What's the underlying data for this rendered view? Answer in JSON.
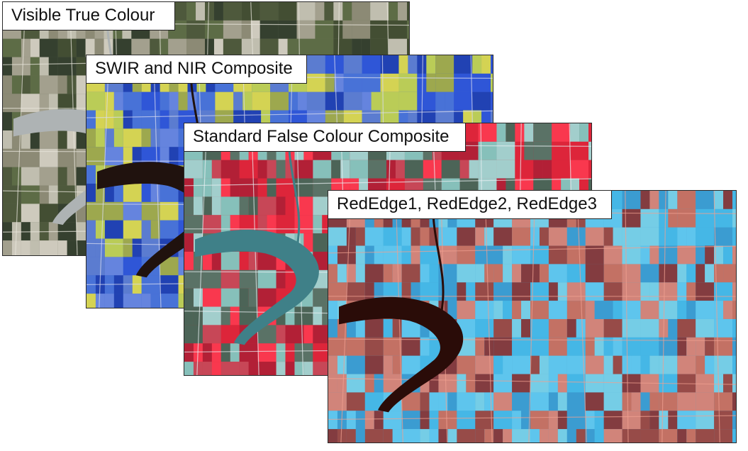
{
  "panels": [
    {
      "id": "visible",
      "label": "Visible True Colour",
      "palette": {
        "base": "#6f7361",
        "fields": [
          "#3e4a2f",
          "#a9a593",
          "#2f3b2a",
          "#8f8d78",
          "#c9c6b8",
          "#5b6b44",
          "#d8d4c8",
          "#4a5638"
        ],
        "water": "#aeb3b4",
        "road": "#e8e6dc"
      }
    },
    {
      "id": "swir-nir",
      "label": "SWIR and NIR Composite",
      "palette": {
        "base": "#3a5fc8",
        "fields": [
          "#2f55d8",
          "#e6e046",
          "#4a74d8",
          "#a8b040",
          "#1f3fb0",
          "#c9d84a",
          "#6a88e0",
          "#5f7fd0"
        ],
        "water": "#20120e",
        "road": "#d8dcf0"
      }
    },
    {
      "id": "false-colour",
      "label": "Standard False Colour Composite",
      "palette": {
        "base": "#c43040",
        "fields": [
          "#e0253a",
          "#7fd0c8",
          "#b01f35",
          "#4f7a6a",
          "#ff3a50",
          "#9fe0dc",
          "#c84a5a",
          "#3f6a5a"
        ],
        "water": "#3f8088",
        "road": "#e8f0f2"
      }
    },
    {
      "id": "red-edge",
      "label": "RedEdge1, RedEdge2, RedEdge3",
      "palette": {
        "base": "#4aa8d0",
        "fields": [
          "#45b8e8",
          "#8a3030",
          "#60c8f0",
          "#d06a58",
          "#3a9ad0",
          "#7ad0e8",
          "#a04038",
          "#e08070"
        ],
        "water": "#2a0c08",
        "road": "#f0a090"
      }
    }
  ]
}
